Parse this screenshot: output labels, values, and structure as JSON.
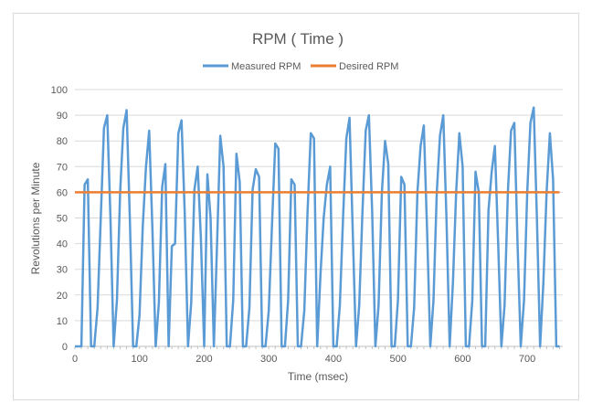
{
  "chart_data": {
    "type": "line",
    "title": "RPM ( Time )",
    "xlabel": "Time (msec)",
    "ylabel": "Revolutions per Minute",
    "xlim": [
      0,
      755
    ],
    "ylim": [
      0,
      100
    ],
    "xticks": [
      0,
      100,
      200,
      300,
      400,
      500,
      600,
      700
    ],
    "yticks": [
      0,
      10,
      20,
      30,
      40,
      50,
      60,
      70,
      80,
      90,
      100
    ],
    "grid": "horizontal",
    "legend_position": "top",
    "series": [
      {
        "name": "Measured RPM",
        "color": "#5b9bd5",
        "x": [
          0,
          5,
          10,
          15,
          20,
          25,
          30,
          35,
          40,
          45,
          50,
          55,
          60,
          65,
          70,
          75,
          80,
          85,
          90,
          95,
          100,
          105,
          110,
          115,
          120,
          125,
          130,
          135,
          140,
          145,
          150,
          155,
          160,
          165,
          170,
          175,
          180,
          185,
          190,
          195,
          200,
          205,
          210,
          215,
          220,
          225,
          230,
          235,
          240,
          245,
          250,
          255,
          260,
          265,
          270,
          275,
          280,
          285,
          290,
          295,
          300,
          305,
          310,
          315,
          320,
          325,
          330,
          335,
          340,
          345,
          350,
          355,
          360,
          365,
          370,
          375,
          380,
          385,
          390,
          395,
          400,
          405,
          410,
          415,
          420,
          425,
          430,
          435,
          440,
          445,
          450,
          455,
          460,
          465,
          470,
          475,
          480,
          485,
          490,
          495,
          500,
          505,
          510,
          515,
          520,
          525,
          530,
          535,
          540,
          545,
          550,
          555,
          560,
          565,
          570,
          575,
          580,
          585,
          590,
          595,
          600,
          605,
          610,
          615,
          620,
          625,
          630,
          635,
          640,
          645,
          650,
          655,
          660,
          665,
          670,
          675,
          680,
          685,
          690,
          695,
          700,
          705,
          710,
          715,
          720,
          725,
          730,
          735,
          740,
          745,
          750
        ],
        "values": [
          0,
          0,
          0,
          63,
          65,
          0,
          0,
          15,
          50,
          85,
          90,
          50,
          0,
          18,
          60,
          85,
          92,
          50,
          0,
          0,
          12,
          47,
          70,
          84,
          45,
          0,
          17,
          62,
          71,
          0,
          39,
          40,
          83,
          88,
          52,
          0,
          17,
          61,
          70,
          42,
          0,
          67,
          50,
          0,
          40,
          82,
          70,
          0,
          0,
          18,
          75,
          64,
          0,
          0,
          15,
          61,
          69,
          66,
          0,
          0,
          14,
          47,
          79,
          77,
          0,
          0,
          18,
          65,
          63,
          0,
          0,
          14,
          52,
          83,
          81,
          0,
          28,
          50,
          63,
          70,
          0,
          0,
          16,
          50,
          81,
          89,
          45,
          0,
          16,
          52,
          84,
          90,
          52,
          0,
          16,
          60,
          80,
          71,
          0,
          0,
          18,
          66,
          63,
          0,
          0,
          15,
          60,
          78,
          86,
          45,
          0,
          18,
          60,
          82,
          90,
          50,
          0,
          25,
          60,
          83,
          70,
          0,
          0,
          18,
          68,
          60,
          0,
          0,
          53,
          68,
          78,
          40,
          0,
          16,
          60,
          84,
          87,
          40,
          0,
          18,
          60,
          87,
          93,
          50,
          0,
          25,
          60,
          83,
          65,
          0,
          0
        ]
      },
      {
        "name": "Desired RPM",
        "color": "#ed7d31",
        "x": [
          0,
          750
        ],
        "values": [
          60,
          60
        ]
      }
    ]
  }
}
